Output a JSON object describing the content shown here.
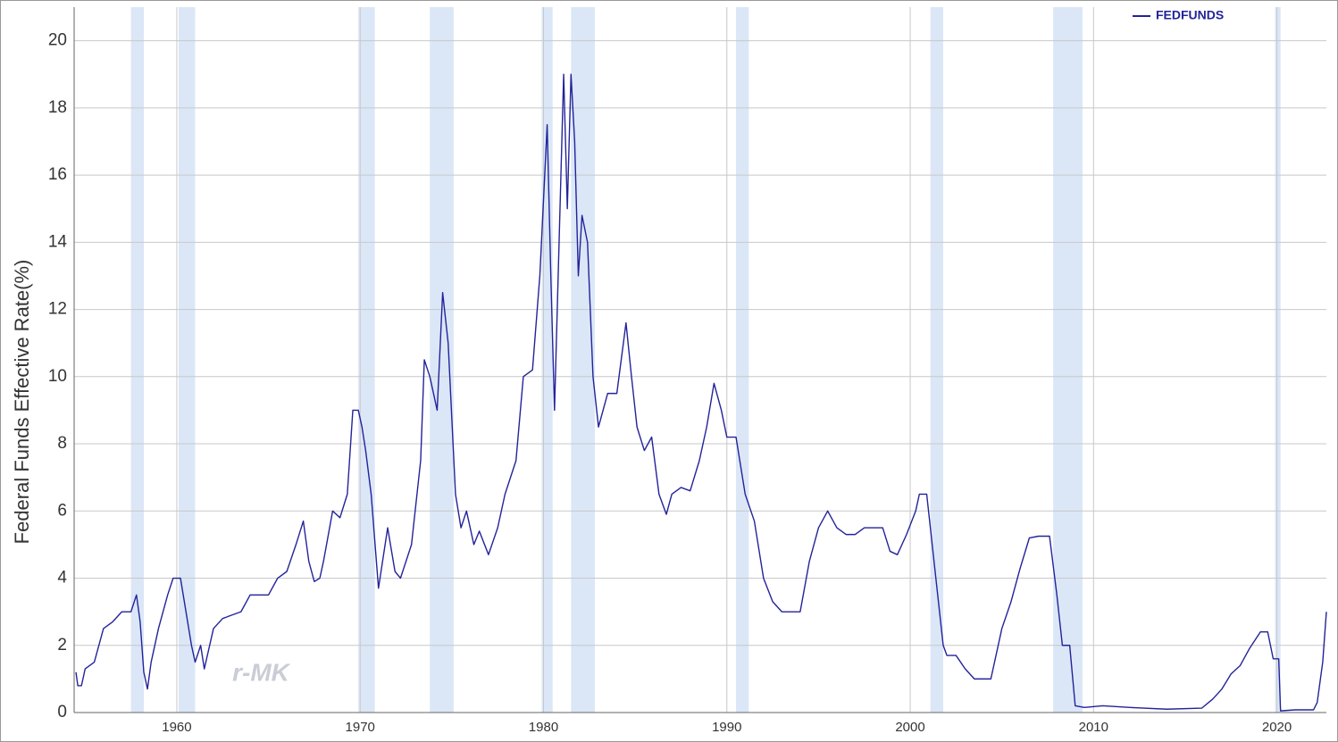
{
  "chart_data": {
    "type": "line",
    "y_label": "Federal Funds Effective Rate(%)",
    "watermark": "r-MK",
    "legend_position": "top-right",
    "grid": true,
    "xlim": [
      1954.4,
      2022.7
    ],
    "ylim": [
      0,
      21
    ],
    "xticks": [
      1960,
      1970,
      1980,
      1990,
      2000,
      2010,
      2020
    ],
    "yticks": [
      0,
      2,
      4,
      6,
      8,
      10,
      12,
      14,
      16,
      18,
      20
    ],
    "recession_color": "#dbe7f7",
    "recessions": [
      [
        1957.5,
        1958.2
      ],
      [
        1960.1,
        1961.0
      ],
      [
        1969.9,
        1970.8
      ],
      [
        1973.8,
        1975.1
      ],
      [
        1979.9,
        1980.5
      ],
      [
        1981.5,
        1982.8
      ],
      [
        1990.5,
        1991.2
      ],
      [
        2001.1,
        2001.8
      ],
      [
        2007.8,
        2009.4
      ],
      [
        2019.9,
        2020.2
      ]
    ],
    "series": [
      {
        "name": "FEDFUNDS",
        "color": "#23239a",
        "x": [
          1954.5,
          1954.6,
          1954.8,
          1955,
          1955.5,
          1956,
          1956.5,
          1957,
          1957.5,
          1957.8,
          1958.0,
          1958.2,
          1958.4,
          1958.6,
          1959,
          1959.5,
          1959.8,
          1960.2,
          1960.5,
          1960.8,
          1961.0,
          1961.3,
          1961.5,
          1962,
          1962.5,
          1963,
          1963.5,
          1964,
          1964.5,
          1965,
          1965.5,
          1966,
          1966.5,
          1966.9,
          1967.2,
          1967.5,
          1967.8,
          1968.0,
          1968.5,
          1968.9,
          1969.3,
          1969.6,
          1969.9,
          1970.1,
          1970.3,
          1970.6,
          1971.0,
          1971.5,
          1971.9,
          1972.2,
          1972.8,
          1973.3,
          1973.5,
          1973.8,
          1974.2,
          1974.5,
          1974.8,
          1975.2,
          1975.5,
          1975.8,
          1976.2,
          1976.5,
          1977.0,
          1977.5,
          1977.9,
          1978.5,
          1978.9,
          1979.4,
          1979.8,
          1980.2,
          1980.4,
          1980.6,
          1980.9,
          1981.1,
          1981.3,
          1981.5,
          1981.7,
          1981.9,
          1982.1,
          1982.4,
          1982.7,
          1983.0,
          1983.5,
          1984.0,
          1984.5,
          1984.8,
          1985.1,
          1985.5,
          1985.9,
          1986.3,
          1986.7,
          1987.0,
          1987.5,
          1988.0,
          1988.5,
          1988.9,
          1989.3,
          1989.7,
          1990.0,
          1990.5,
          1991.0,
          1991.5,
          1992.0,
          1992.5,
          1993.0,
          1993.5,
          1994.0,
          1994.5,
          1995.0,
          1995.5,
          1996.0,
          1996.5,
          1997.0,
          1997.5,
          1998.5,
          1998.9,
          1999.3,
          1999.8,
          2000.3,
          2000.5,
          2000.9,
          2001.3,
          2001.8,
          2002.0,
          2002.5,
          2003.0,
          2003.5,
          2004.0,
          2004.4,
          2005.0,
          2005.5,
          2006.0,
          2006.5,
          2007.0,
          2007.6,
          2008.0,
          2008.3,
          2008.7,
          2009.0,
          2009.5,
          2010.5,
          2012,
          2014,
          2015.9,
          2016.5,
          2017,
          2017.5,
          2018,
          2018.5,
          2019.1,
          2019.5,
          2019.8,
          2020.1,
          2020.2,
          2021,
          2022,
          2022.2,
          2022.5,
          2022.7
        ],
        "values": [
          1.2,
          0.8,
          0.8,
          1.3,
          1.5,
          2.5,
          2.7,
          3.0,
          3.0,
          3.5,
          2.7,
          1.2,
          0.7,
          1.5,
          2.5,
          3.5,
          4.0,
          4.0,
          3.0,
          2.0,
          1.5,
          2.0,
          1.3,
          2.5,
          2.8,
          2.9,
          3.0,
          3.5,
          3.5,
          3.5,
          4.0,
          4.2,
          5.0,
          5.7,
          4.5,
          3.9,
          4.0,
          4.5,
          6.0,
          5.8,
          6.5,
          9.0,
          9.0,
          8.5,
          7.8,
          6.5,
          3.7,
          5.5,
          4.2,
          4.0,
          5.0,
          7.5,
          10.5,
          10.0,
          9.0,
          12.5,
          11.0,
          6.5,
          5.5,
          6.0,
          5.0,
          5.4,
          4.7,
          5.5,
          6.5,
          7.5,
          10.0,
          10.2,
          13.0,
          17.5,
          13.0,
          9.0,
          15.0,
          19.0,
          15.0,
          19.0,
          17.0,
          13.0,
          14.8,
          14.0,
          10.0,
          8.5,
          9.5,
          9.5,
          11.6,
          10.0,
          8.5,
          7.8,
          8.2,
          6.5,
          5.9,
          6.5,
          6.7,
          6.6,
          7.5,
          8.5,
          9.8,
          9.0,
          8.2,
          8.2,
          6.5,
          5.7,
          4.0,
          3.3,
          3.0,
          3.0,
          3.0,
          4.5,
          5.5,
          6.0,
          5.5,
          5.3,
          5.3,
          5.5,
          5.5,
          4.8,
          4.7,
          5.3,
          6.0,
          6.5,
          6.5,
          4.5,
          2.0,
          1.7,
          1.7,
          1.3,
          1.0,
          1.0,
          1.0,
          2.5,
          3.3,
          4.3,
          5.2,
          5.25,
          5.25,
          3.5,
          2.0,
          2.0,
          0.2,
          0.15,
          0.2,
          0.15,
          0.1,
          0.13,
          0.4,
          0.7,
          1.15,
          1.4,
          1.9,
          2.4,
          2.4,
          1.6,
          1.6,
          0.05,
          0.08,
          0.08,
          0.3,
          1.5,
          3.0
        ]
      }
    ]
  }
}
